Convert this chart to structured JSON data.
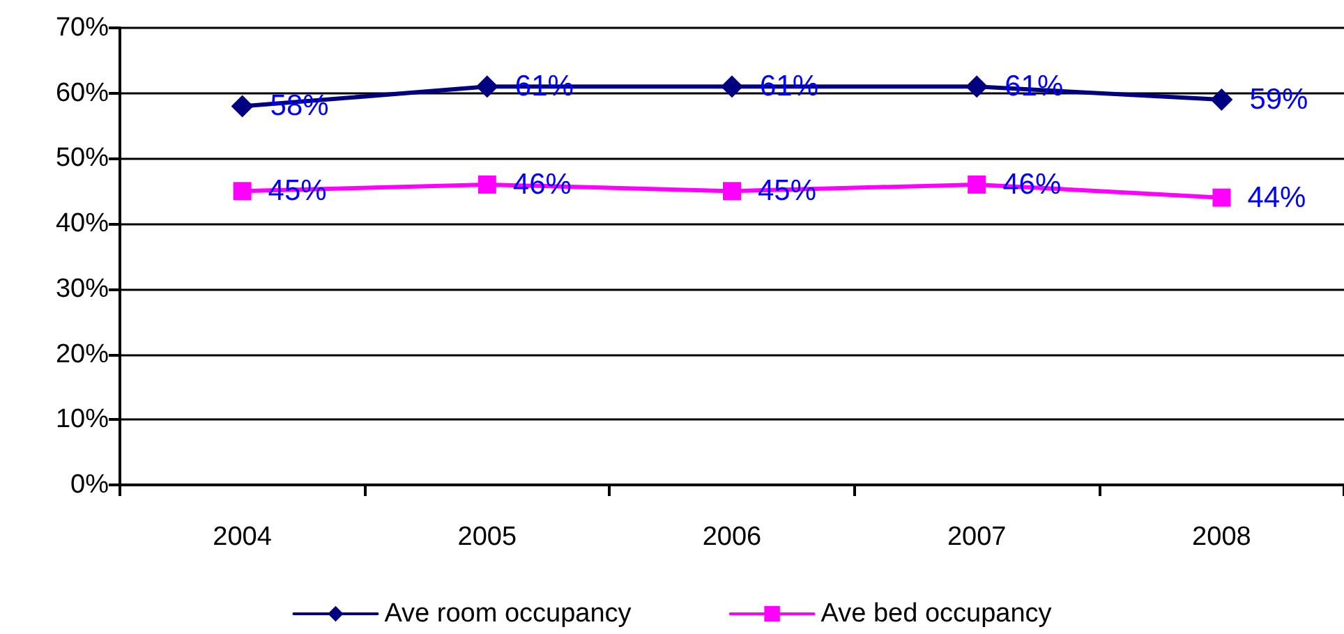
{
  "chart_data": {
    "type": "line",
    "categories": [
      "2004",
      "2005",
      "2006",
      "2007",
      "2008"
    ],
    "series": [
      {
        "name": "Ave room occupancy",
        "color": "#000080",
        "marker": "diamond",
        "values": [
          58,
          61,
          61,
          61,
          59
        ],
        "value_labels": [
          "58%",
          "61%",
          "61%",
          "61%",
          "59%"
        ]
      },
      {
        "name": "Ave bed occupancy",
        "color": "#ff00ff",
        "marker": "square",
        "values": [
          45,
          46,
          45,
          46,
          44
        ],
        "value_labels": [
          "45%",
          "46%",
          "45%",
          "46%",
          "44%"
        ]
      }
    ],
    "ylim": [
      0,
      70
    ],
    "yticks": [
      {
        "value": 0,
        "label": "0%"
      },
      {
        "value": 10,
        "label": "10%"
      },
      {
        "value": 20,
        "label": "20%"
      },
      {
        "value": 30,
        "label": "30%"
      },
      {
        "value": 40,
        "label": "40%"
      },
      {
        "value": 50,
        "label": "50%"
      },
      {
        "value": 60,
        "label": "60%"
      },
      {
        "value": 70,
        "label": "70%"
      }
    ],
    "grid": "y",
    "legend": "bottom",
    "line_style": "solid"
  }
}
